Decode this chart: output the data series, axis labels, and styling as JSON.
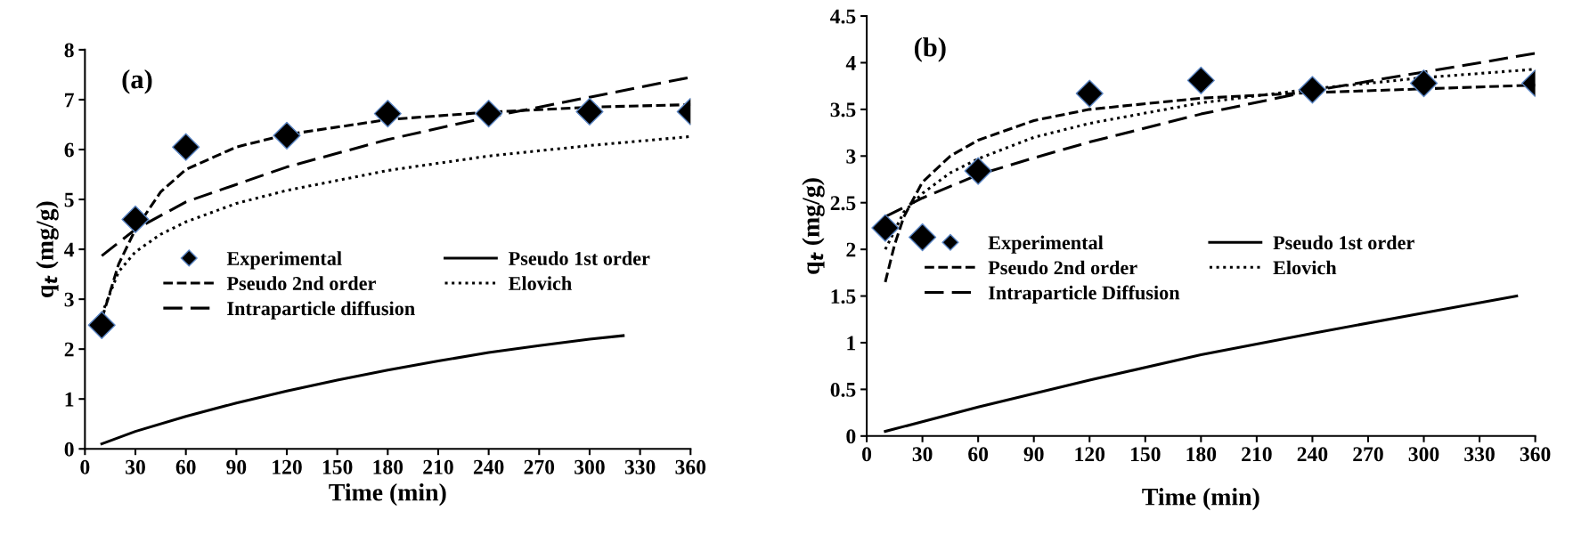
{
  "chart_data": [
    {
      "type": "line",
      "xlabel": "Time (min)",
      "ylabel": "q$_{t}$ (mg/g)",
      "annotations": [
        "(a)"
      ],
      "xlim": [
        0,
        360
      ],
      "xticks": [
        0,
        30,
        60,
        90,
        120,
        150,
        180,
        210,
        240,
        270,
        300,
        330,
        360
      ],
      "ylim": [
        0,
        8
      ],
      "yticks": [
        0,
        1,
        2,
        3,
        4,
        5,
        6,
        7,
        8
      ],
      "grid": false,
      "legend": "center left",
      "series": [
        {
          "name": "Experimental",
          "type": "scatter",
          "marker": "diamond",
          "color": "#000000",
          "x": [
            10,
            30,
            60,
            120,
            180,
            240,
            300,
            360
          ],
          "values": [
            2.48,
            4.6,
            6.05,
            6.28,
            6.72,
            6.72,
            6.76,
            6.76
          ]
        },
        {
          "name": "Pseudo 1st order",
          "line_style": "solid",
          "color": "#000000",
          "x": [
            10,
            30,
            60,
            90,
            120,
            150,
            180,
            210,
            240,
            270,
            300,
            320
          ],
          "values": [
            0.1,
            0.35,
            0.65,
            0.92,
            1.16,
            1.38,
            1.58,
            1.76,
            1.93,
            2.07,
            2.2,
            2.27
          ]
        },
        {
          "name": "Pseudo 2nd order",
          "line_style": "dashed",
          "color": "#000000",
          "x": [
            10,
            20,
            30,
            45,
            60,
            90,
            120,
            180,
            240,
            300,
            360
          ],
          "values": [
            2.6,
            3.7,
            4.4,
            5.15,
            5.6,
            6.05,
            6.3,
            6.6,
            6.75,
            6.85,
            6.9
          ]
        },
        {
          "name": "Elovich",
          "line_style": "dotted",
          "color": "#000000",
          "x": [
            10,
            20,
            30,
            45,
            60,
            90,
            120,
            180,
            240,
            300,
            360
          ],
          "values": [
            2.7,
            3.55,
            3.95,
            4.3,
            4.55,
            4.92,
            5.18,
            5.58,
            5.87,
            6.08,
            6.26
          ]
        },
        {
          "name": "Intraparticle diffusion",
          "line_style": "longdash",
          "color": "#000000",
          "x": [
            10,
            30,
            60,
            90,
            120,
            180,
            240,
            300,
            360
          ],
          "values": [
            3.87,
            4.4,
            4.95,
            5.3,
            5.65,
            6.2,
            6.65,
            7.05,
            7.45
          ]
        }
      ]
    },
    {
      "type": "line",
      "xlabel": "Time (min)",
      "ylabel": "q$_{t}$ (mg/g)",
      "annotations": [
        "(b)"
      ],
      "xlim": [
        0,
        360
      ],
      "xticks": [
        0,
        30,
        60,
        90,
        120,
        150,
        180,
        210,
        240,
        270,
        300,
        330,
        360
      ],
      "ylim": [
        0,
        4.5
      ],
      "yticks": [
        0,
        0.5,
        1,
        1.5,
        2,
        2.5,
        3,
        3.5,
        4,
        4.5
      ],
      "grid": false,
      "legend": "center left",
      "series": [
        {
          "name": "Experimental",
          "type": "scatter",
          "marker": "diamond",
          "color": "#000000",
          "x": [
            10,
            30,
            60,
            120,
            180,
            240,
            300,
            360
          ],
          "values": [
            2.23,
            2.13,
            2.84,
            3.67,
            3.81,
            3.71,
            3.78,
            3.78
          ]
        },
        {
          "name": "Pseudo 1st order",
          "line_style": "solid",
          "color": "#000000",
          "x": [
            10,
            60,
            120,
            180,
            240,
            300,
            350
          ],
          "values": [
            0.05,
            0.31,
            0.6,
            0.87,
            1.1,
            1.32,
            1.5
          ]
        },
        {
          "name": "Pseudo 2nd order",
          "line_style": "dashed",
          "color": "#000000",
          "x": [
            10,
            15,
            20,
            30,
            45,
            60,
            90,
            120,
            180,
            240,
            300,
            360
          ],
          "values": [
            1.65,
            2.05,
            2.35,
            2.72,
            3.0,
            3.17,
            3.38,
            3.5,
            3.62,
            3.68,
            3.72,
            3.76
          ]
        },
        {
          "name": "Elovich",
          "line_style": "dotted",
          "color": "#000000",
          "x": [
            10,
            20,
            30,
            45,
            60,
            90,
            120,
            180,
            240,
            300,
            360
          ],
          "values": [
            2.0,
            2.4,
            2.6,
            2.82,
            2.97,
            3.2,
            3.35,
            3.57,
            3.72,
            3.84,
            3.93
          ]
        },
        {
          "name": "Intraparticle Diffusion",
          "line_style": "longdash",
          "color": "#000000",
          "x": [
            10,
            30,
            60,
            90,
            120,
            180,
            240,
            300,
            360
          ],
          "values": [
            2.35,
            2.55,
            2.8,
            2.98,
            3.15,
            3.45,
            3.7,
            3.9,
            4.1
          ]
        }
      ]
    }
  ]
}
